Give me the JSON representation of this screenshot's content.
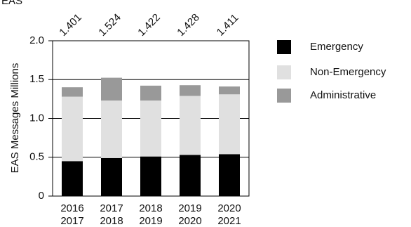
{
  "chart_data": {
    "type": "stacked_bar",
    "title": "EAS",
    "y_label": "EAS Messages Millions",
    "categories": [
      [
        "2016",
        "2017"
      ],
      [
        "2017",
        "2018"
      ],
      [
        "2018",
        "2019"
      ],
      [
        "2019",
        "2020"
      ],
      [
        "2020",
        "2021"
      ]
    ],
    "series": [
      {
        "name": "Emergency",
        "color": "#000000",
        "values": [
          0.45,
          0.49,
          0.51,
          0.53,
          0.54
        ]
      },
      {
        "name": "Non-Emergency",
        "color": "#e0e0e0",
        "values": [
          0.83,
          0.74,
          0.72,
          0.76,
          0.77
        ]
      },
      {
        "name": "Administrative",
        "color": "#999999",
        "values": [
          0.121,
          0.294,
          0.192,
          0.138,
          0.101
        ]
      }
    ],
    "totals": [
      1.401,
      1.524,
      1.422,
      1.428,
      1.411
    ],
    "ylim": [
      0,
      2
    ],
    "yticks": [
      0,
      0.5,
      {
        "value": 1,
        "label": "1.0"
      },
      1.5,
      {
        "value": 2,
        "label": "2.0"
      }
    ],
    "grid": true,
    "legend": "right"
  }
}
